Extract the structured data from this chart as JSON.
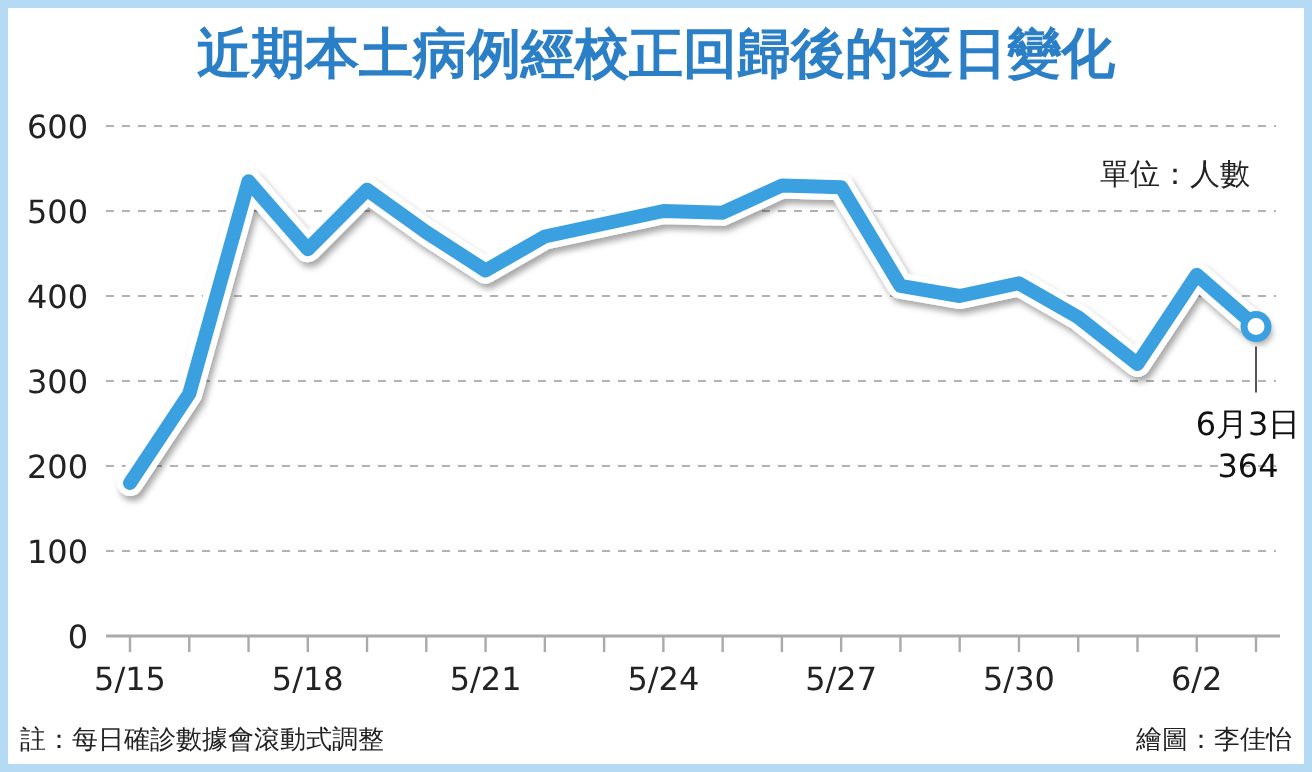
{
  "chart_data": {
    "type": "line",
    "title": "近期本土病例經校正回歸後的逐日變化",
    "categories": [
      "5/15",
      null,
      null,
      "5/18",
      null,
      null,
      "5/21",
      null,
      null,
      "5/24",
      null,
      null,
      "5/27",
      null,
      null,
      "5/30",
      null,
      null,
      "6/2",
      null
    ],
    "series": [
      {
        "color": "#3aa0e0",
        "values": [
          180,
          285,
          535,
          455,
          525,
          475,
          430,
          470,
          485,
          500,
          498,
          530,
          528,
          412,
          400,
          415,
          375,
          320,
          425,
          364
        ]
      }
    ],
    "ylim": [
      0,
      600
    ],
    "yticks": [
      0,
      100,
      200,
      300,
      400,
      500,
      600
    ],
    "grid": "y",
    "annotations": [
      "單位：人數",
      {
        "text": "6月3日\n364",
        "y": 364
      },
      "註：每日確診數據會滾動式調整",
      "繪圖：李佳怡"
    ]
  }
}
